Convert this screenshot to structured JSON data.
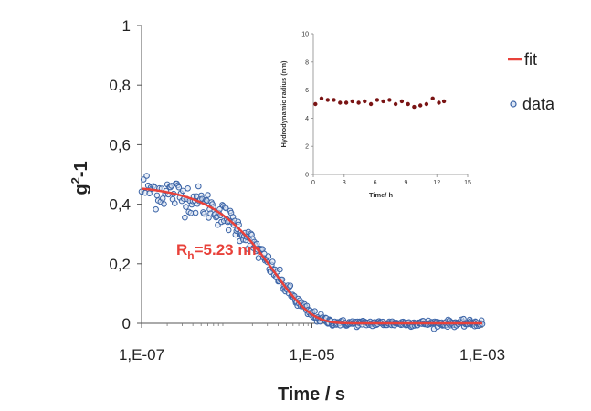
{
  "chart_data": [
    {
      "type": "scatter",
      "xlabel": "Time / s",
      "ylabel": "g",
      "ylabel_sup": "2",
      "ylabel_suffix": "-1",
      "x_scale": "log",
      "xlim": [
        1e-07,
        0.001
      ],
      "ylim": [
        0,
        1
      ],
      "x_ticks": [
        1e-07,
        1e-05,
        0.001
      ],
      "x_tick_labels": [
        "1,E-07",
        "1,E-05",
        "1,E-03"
      ],
      "y_ticks": [
        0,
        0.2,
        0.4,
        0.6,
        0.8,
        1
      ],
      "y_tick_labels": [
        "0",
        "0,2",
        "0,4",
        "0,6",
        "0,8",
        "1"
      ],
      "grid": false,
      "legend_position": "right",
      "series": [
        {
          "name": "fit",
          "kind": "line",
          "color": "#e8413a",
          "amplitude": 0.465,
          "decay_time_s": 7.3e-06
        },
        {
          "name": "data",
          "kind": "scatter",
          "marker": "open-circle",
          "color": "#3a63a6",
          "noise_note": ""
        }
      ],
      "annotation": {
        "text": "R",
        "sub": "h",
        "rest": "=5.23 nm",
        "color": "#e8413a"
      }
    },
    {
      "type": "scatter",
      "xlabel": "Time/ h",
      "ylabel": "Hydrodynamic radius (nm)",
      "xlim": [
        0,
        15
      ],
      "ylim": [
        0,
        10
      ],
      "x_ticks": [
        0,
        3,
        6,
        9,
        12,
        15
      ],
      "y_ticks": [
        0,
        2,
        4,
        6,
        8,
        10
      ],
      "grid": false,
      "marker_color": "#7a1414",
      "x": [
        0.2,
        0.8,
        1.4,
        2.0,
        2.6,
        3.2,
        3.8,
        4.4,
        5.0,
        5.6,
        6.2,
        6.8,
        7.4,
        8.0,
        8.6,
        9.2,
        9.8,
        10.4,
        11.0,
        11.6,
        12.2,
        12.7
      ],
      "y": [
        5.0,
        5.4,
        5.3,
        5.3,
        5.1,
        5.1,
        5.2,
        5.1,
        5.2,
        5.0,
        5.3,
        5.2,
        5.3,
        5.0,
        5.2,
        5.0,
        4.8,
        4.9,
        5.0,
        5.4,
        5.1,
        5.2
      ]
    }
  ]
}
